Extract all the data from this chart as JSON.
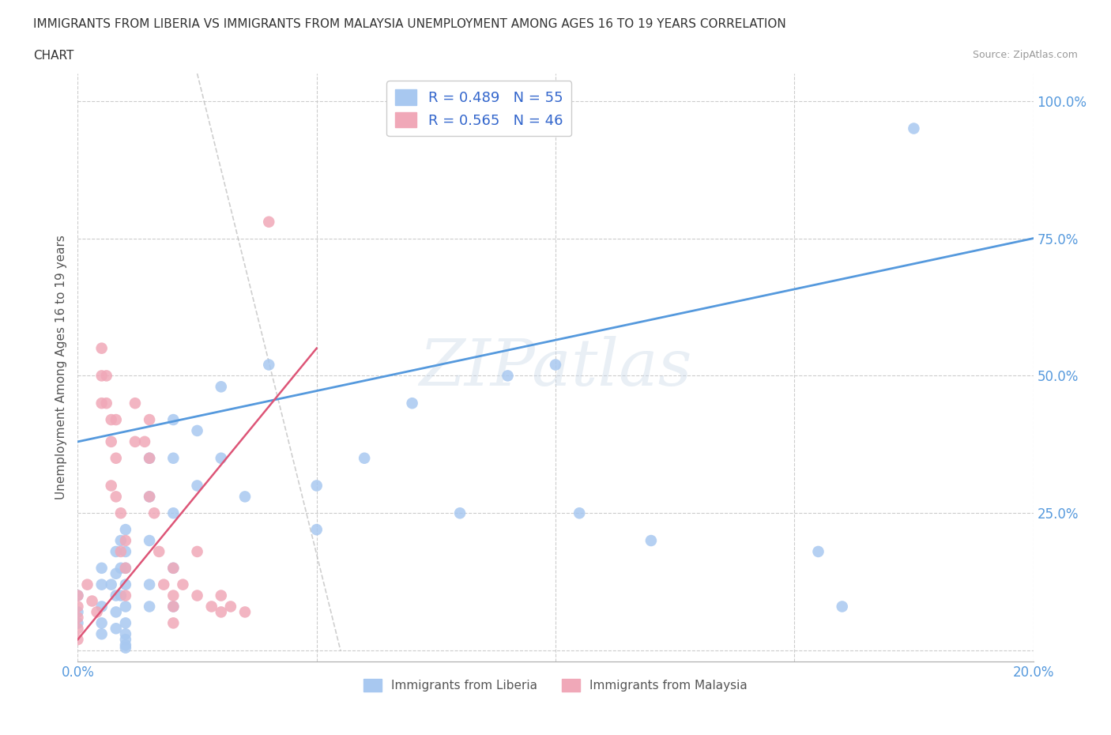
{
  "title_line1": "IMMIGRANTS FROM LIBERIA VS IMMIGRANTS FROM MALAYSIA UNEMPLOYMENT AMONG AGES 16 TO 19 YEARS CORRELATION",
  "title_line2": "CHART",
  "source": "Source: ZipAtlas.com",
  "ylabel": "Unemployment Among Ages 16 to 19 years",
  "xlim": [
    0.0,
    0.2
  ],
  "ylim": [
    -0.02,
    1.05
  ],
  "ytick_values": [
    0.0,
    0.25,
    0.5,
    0.75,
    1.0
  ],
  "ytick_labels": [
    "",
    "25.0%",
    "50.0%",
    "75.0%",
    "100.0%"
  ],
  "xtick_values": [
    0.0,
    0.05,
    0.1,
    0.15,
    0.2
  ],
  "xtick_labels": [
    "0.0%",
    "",
    "",
    "",
    "20.0%"
  ],
  "liberia_R": 0.489,
  "liberia_N": 55,
  "malaysia_R": 0.565,
  "malaysia_N": 46,
  "liberia_color": "#a8c8f0",
  "malaysia_color": "#f0a8b8",
  "liberia_line_color": "#5599dd",
  "malaysia_line_color": "#dd5577",
  "tick_color": "#5599dd",
  "legend_label_liberia": "Immigrants from Liberia",
  "legend_label_malaysia": "Immigrants from Malaysia",
  "watermark": "ZIPatlas",
  "background_color": "#ffffff",
  "grid_color": "#cccccc",
  "liberia_line_x0": 0.0,
  "liberia_line_y0": 0.38,
  "liberia_line_x1": 0.2,
  "liberia_line_y1": 0.75,
  "malaysia_line_x0": 0.0,
  "malaysia_line_y0": 0.02,
  "malaysia_line_x1": 0.05,
  "malaysia_line_y1": 0.55,
  "diag_line_x0": 0.025,
  "diag_line_y0": 1.05,
  "diag_line_x1": 0.055,
  "diag_line_y1": 0.0,
  "liberia_scatter_x": [
    0.0,
    0.0,
    0.0,
    0.005,
    0.005,
    0.005,
    0.005,
    0.005,
    0.007,
    0.008,
    0.008,
    0.008,
    0.008,
    0.008,
    0.009,
    0.009,
    0.009,
    0.01,
    0.01,
    0.01,
    0.01,
    0.01,
    0.01,
    0.01,
    0.01,
    0.01,
    0.01,
    0.015,
    0.015,
    0.015,
    0.015,
    0.015,
    0.02,
    0.02,
    0.02,
    0.02,
    0.02,
    0.025,
    0.025,
    0.03,
    0.03,
    0.035,
    0.04,
    0.05,
    0.05,
    0.06,
    0.07,
    0.08,
    0.09,
    0.1,
    0.105,
    0.12,
    0.155,
    0.16,
    0.175
  ],
  "liberia_scatter_y": [
    0.1,
    0.07,
    0.05,
    0.15,
    0.12,
    0.08,
    0.05,
    0.03,
    0.12,
    0.18,
    0.14,
    0.1,
    0.07,
    0.04,
    0.2,
    0.15,
    0.1,
    0.22,
    0.18,
    0.15,
    0.12,
    0.08,
    0.05,
    0.03,
    0.02,
    0.01,
    0.005,
    0.35,
    0.28,
    0.2,
    0.12,
    0.08,
    0.42,
    0.35,
    0.25,
    0.15,
    0.08,
    0.4,
    0.3,
    0.48,
    0.35,
    0.28,
    0.52,
    0.3,
    0.22,
    0.35,
    0.45,
    0.25,
    0.5,
    0.52,
    0.25,
    0.2,
    0.18,
    0.08,
    0.95
  ],
  "malaysia_scatter_x": [
    0.0,
    0.0,
    0.0,
    0.0,
    0.0,
    0.002,
    0.003,
    0.004,
    0.005,
    0.005,
    0.005,
    0.006,
    0.006,
    0.007,
    0.007,
    0.007,
    0.008,
    0.008,
    0.008,
    0.009,
    0.009,
    0.01,
    0.01,
    0.01,
    0.012,
    0.012,
    0.014,
    0.015,
    0.015,
    0.015,
    0.016,
    0.017,
    0.018,
    0.02,
    0.02,
    0.02,
    0.02,
    0.022,
    0.025,
    0.025,
    0.028,
    0.03,
    0.03,
    0.032,
    0.035,
    0.04
  ],
  "malaysia_scatter_y": [
    0.1,
    0.08,
    0.06,
    0.04,
    0.02,
    0.12,
    0.09,
    0.07,
    0.45,
    0.5,
    0.55,
    0.45,
    0.5,
    0.42,
    0.38,
    0.3,
    0.42,
    0.35,
    0.28,
    0.25,
    0.18,
    0.2,
    0.15,
    0.1,
    0.45,
    0.38,
    0.38,
    0.42,
    0.35,
    0.28,
    0.25,
    0.18,
    0.12,
    0.15,
    0.1,
    0.08,
    0.05,
    0.12,
    0.18,
    0.1,
    0.08,
    0.1,
    0.07,
    0.08,
    0.07,
    0.78
  ]
}
